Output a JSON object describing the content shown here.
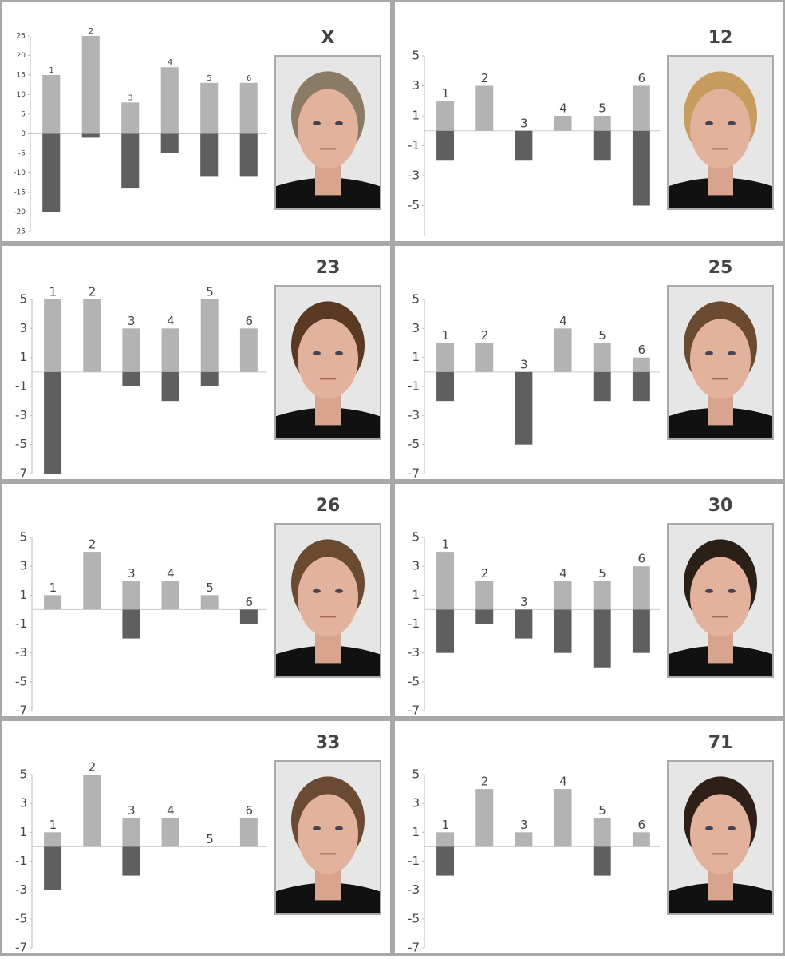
{
  "chart_data": [
    {
      "type": "bar",
      "title": "X",
      "categories": [
        "1",
        "2",
        "3",
        "4",
        "5",
        "6"
      ],
      "series": [
        {
          "color": "#b3b3b3",
          "values": [
            15,
            25,
            8,
            17,
            13,
            13
          ]
        },
        {
          "color": "#5f5f5f",
          "values": [
            -20,
            -1,
            -14,
            -5,
            -11,
            -11
          ]
        }
      ],
      "ylim": [
        -25,
        25
      ],
      "yticks": [
        -25,
        -20,
        -15,
        -10,
        -5,
        0,
        5,
        10,
        15,
        20,
        25
      ]
    },
    {
      "type": "bar",
      "title": "12",
      "categories": [
        "1",
        "2",
        "3",
        "4",
        "5",
        "6"
      ],
      "series": [
        {
          "color": "#b3b3b3",
          "values": [
            2,
            3,
            0,
            1,
            1,
            3
          ]
        },
        {
          "color": "#5f5f5f",
          "values": [
            -2,
            0,
            -2,
            0,
            -2,
            -5
          ]
        }
      ],
      "ylim": [
        -7,
        5
      ],
      "yticks": [
        -5,
        -3,
        -1,
        1,
        3,
        5
      ]
    },
    {
      "type": "bar",
      "title": "23",
      "categories": [
        "1",
        "2",
        "3",
        "4",
        "5",
        "6"
      ],
      "series": [
        {
          "color": "#b3b3b3",
          "values": [
            5,
            5,
            3,
            3,
            5,
            3
          ]
        },
        {
          "color": "#5f5f5f",
          "values": [
            -7,
            0,
            -1,
            -2,
            -1,
            0
          ]
        }
      ],
      "ylim": [
        -7,
        5
      ],
      "yticks": [
        -7,
        -5,
        -3,
        -1,
        1,
        3,
        5
      ]
    },
    {
      "type": "bar",
      "title": "25",
      "categories": [
        "1",
        "2",
        "3",
        "4",
        "5",
        "6"
      ],
      "series": [
        {
          "color": "#b3b3b3",
          "values": [
            2,
            2,
            0,
            3,
            2,
            1
          ]
        },
        {
          "color": "#5f5f5f",
          "values": [
            -2,
            0,
            -5,
            0,
            -2,
            -2
          ]
        }
      ],
      "ylim": [
        -7,
        5
      ],
      "yticks": [
        -7,
        -5,
        -3,
        -1,
        1,
        3,
        5
      ]
    },
    {
      "type": "bar",
      "title": "26",
      "categories": [
        "1",
        "2",
        "3",
        "4",
        "5",
        "6"
      ],
      "series": [
        {
          "color": "#b3b3b3",
          "values": [
            1,
            4,
            2,
            2,
            1,
            0
          ]
        },
        {
          "color": "#5f5f5f",
          "values": [
            0,
            0,
            -2,
            0,
            0,
            -1
          ]
        }
      ],
      "ylim": [
        -7,
        5
      ],
      "yticks": [
        -7,
        -5,
        -3,
        -1,
        1,
        3,
        5
      ]
    },
    {
      "type": "bar",
      "title": "30",
      "categories": [
        "1",
        "2",
        "3",
        "4",
        "5",
        "6"
      ],
      "series": [
        {
          "color": "#b3b3b3",
          "values": [
            4,
            2,
            0,
            2,
            2,
            3
          ]
        },
        {
          "color": "#5f5f5f",
          "values": [
            -3,
            -1,
            -2,
            -3,
            -4,
            -3
          ]
        }
      ],
      "ylim": [
        -7,
        5
      ],
      "yticks": [
        -7,
        -5,
        -3,
        -1,
        1,
        3,
        5
      ]
    },
    {
      "type": "bar",
      "title": "33",
      "categories": [
        "1",
        "2",
        "3",
        "4",
        "5",
        "6"
      ],
      "series": [
        {
          "color": "#b3b3b3",
          "values": [
            1,
            5,
            2,
            2,
            0,
            2
          ]
        },
        {
          "color": "#5f5f5f",
          "values": [
            -3,
            0,
            -2,
            0,
            0,
            0
          ]
        }
      ],
      "ylim": [
        -7,
        5
      ],
      "yticks": [
        -7,
        -5,
        -3,
        -1,
        1,
        3,
        5
      ]
    },
    {
      "type": "bar",
      "title": "71",
      "categories": [
        "1",
        "2",
        "3",
        "4",
        "5",
        "6"
      ],
      "series": [
        {
          "color": "#b3b3b3",
          "values": [
            1,
            4,
            1,
            4,
            2,
            1
          ]
        },
        {
          "color": "#5f5f5f",
          "values": [
            -2,
            0,
            0,
            0,
            -2,
            0
          ]
        }
      ],
      "ylim": [
        -7,
        5
      ],
      "yticks": [
        -7,
        -5,
        -3,
        -1,
        1,
        3,
        5
      ]
    }
  ]
}
